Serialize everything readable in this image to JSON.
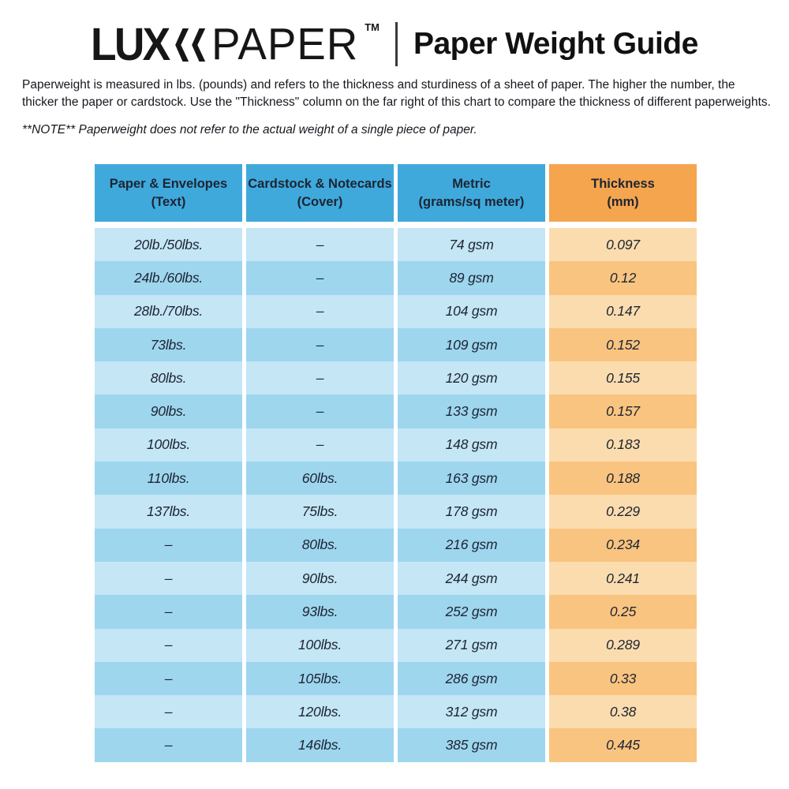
{
  "brand": {
    "lux": "LUX",
    "paper": "PAPER",
    "tm": "TM",
    "title": "Paper Weight Guide"
  },
  "intro": "Paperweight is measured in lbs. (pounds) and refers to the thickness and sturdiness of a sheet of paper. The higher the number, the thicker the paper or cardstock. Use the \"Thickness\" column on the far right of this chart to compare the thickness of different paperweights.",
  "note": "**NOTE** Paperweight does not refer to the actual weight of a single piece of paper.",
  "colors": {
    "header_blue": "#3fa9dc",
    "header_orange": "#f4a54e",
    "row_blue_light": "#c4e6f5",
    "row_blue_dark": "#9ed6ee",
    "row_orange_light": "#fbdcae",
    "row_orange_dark": "#f9c480",
    "text_dark": "#1d2433"
  },
  "chart_data": {
    "type": "table",
    "title": "Paper Weight Guide",
    "columns": [
      {
        "label": "Paper & Envelopes",
        "sublabel": "(Text)",
        "theme": "blue"
      },
      {
        "label": "Cardstock & Notecards",
        "sublabel": "(Cover)",
        "theme": "blue"
      },
      {
        "label": "Metric",
        "sublabel": "(grams/sq meter)",
        "theme": "blue"
      },
      {
        "label": "Thickness",
        "sublabel": "(mm)",
        "theme": "orange"
      }
    ],
    "rows": [
      [
        "20lb./50lbs.",
        "–",
        "74 gsm",
        "0.097"
      ],
      [
        "24lb./60lbs.",
        "–",
        "89 gsm",
        "0.12"
      ],
      [
        "28lb./70lbs.",
        "–",
        "104 gsm",
        "0.147"
      ],
      [
        "73lbs.",
        "–",
        "109 gsm",
        "0.152"
      ],
      [
        "80lbs.",
        "–",
        "120 gsm",
        "0.155"
      ],
      [
        "90lbs.",
        "–",
        "133 gsm",
        "0.157"
      ],
      [
        "100lbs.",
        "–",
        "148 gsm",
        "0.183"
      ],
      [
        "110lbs.",
        "60lbs.",
        "163 gsm",
        "0.188"
      ],
      [
        "137lbs.",
        "75lbs.",
        "178 gsm",
        "0.229"
      ],
      [
        "–",
        "80lbs.",
        "216 gsm",
        "0.234"
      ],
      [
        "–",
        "90lbs.",
        "244 gsm",
        "0.241"
      ],
      [
        "–",
        "93lbs.",
        "252 gsm",
        "0.25"
      ],
      [
        "–",
        "100lbs.",
        "271 gsm",
        "0.289"
      ],
      [
        "–",
        "105lbs.",
        "286 gsm",
        "0.33"
      ],
      [
        "–",
        "120lbs.",
        "312 gsm",
        "0.38"
      ],
      [
        "–",
        "146lbs.",
        "385 gsm",
        "0.445"
      ]
    ]
  }
}
